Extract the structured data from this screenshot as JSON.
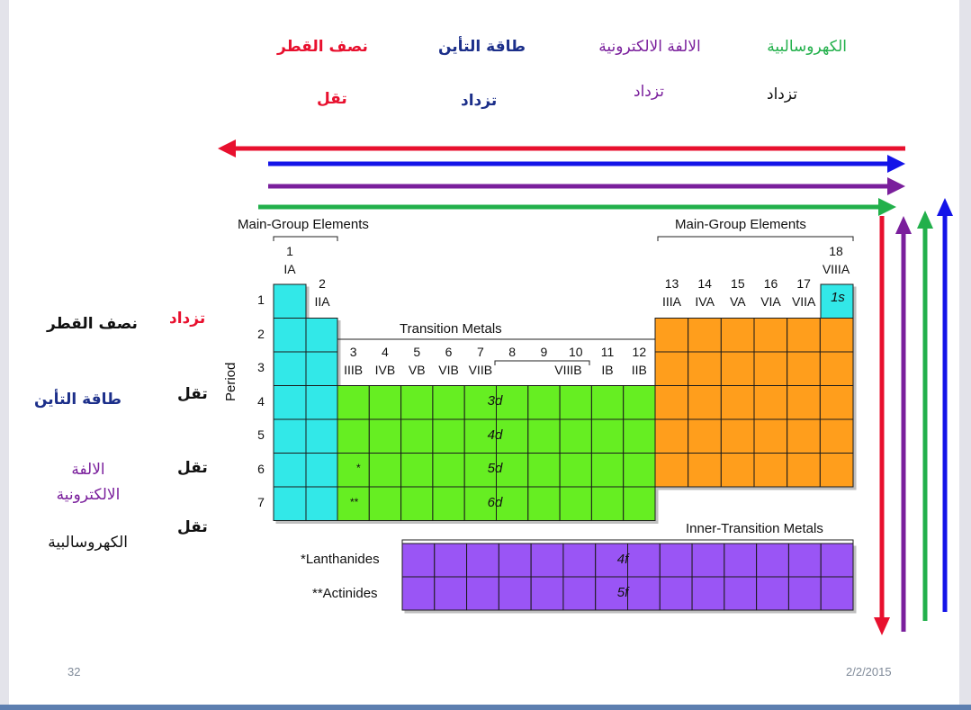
{
  "top_headers": {
    "radius": {
      "title": "نصف القطر",
      "trend": "تقل",
      "color": "#e8102e"
    },
    "ionization": {
      "title": "طاقة التأين",
      "trend": "تزداد",
      "color": "#1c2f8a"
    },
    "affinity": {
      "title": "الالفة الالكترونية",
      "trend": "تزداد",
      "color": "#7a1f9c"
    },
    "electro": {
      "title": "الكهروسالبية",
      "trend": "تزداد",
      "color": "#22b04b",
      "trend_color": "#111111"
    }
  },
  "left_headers": {
    "radius": {
      "title": "نصف القطر",
      "trend": "تزداد",
      "color": "#111111",
      "trend_color": "#e8102e"
    },
    "ionization": {
      "title": "طاقة التأين",
      "trend": "تقل",
      "color": "#1c2f8a"
    },
    "affinity": {
      "title": "الالفة الالكترونية",
      "trend": "تقل",
      "color": "#7a1f9c"
    },
    "electro": {
      "title": "الكهروسالبية",
      "trend": "تقل",
      "color": "#111111"
    }
  },
  "table": {
    "main_group_left": "Main-Group Elements",
    "main_group_right": "Main-Group Elements",
    "transition_metals": "Transition Metals",
    "inner_transition": "Inner-Transition Metals",
    "period_label": "Period",
    "periods": [
      "1",
      "2",
      "3",
      "4",
      "5",
      "6",
      "7"
    ],
    "group1": {
      "num": "1",
      "roman": "IA"
    },
    "group2": {
      "num": "2",
      "roman": "IIA"
    },
    "group18": {
      "num": "18",
      "roman": "VIIIA"
    },
    "main_right_groups": [
      {
        "num": "13",
        "roman": "IIIA"
      },
      {
        "num": "14",
        "roman": "IVA"
      },
      {
        "num": "15",
        "roman": "VA"
      },
      {
        "num": "16",
        "roman": "VIA"
      },
      {
        "num": "17",
        "roman": "VIIA"
      }
    ],
    "transition_groups": [
      {
        "num": "3",
        "roman": "IIIB"
      },
      {
        "num": "4",
        "roman": "IVB"
      },
      {
        "num": "5",
        "roman": "VB"
      },
      {
        "num": "6",
        "roman": "VIB"
      },
      {
        "num": "7",
        "roman": "VIIB"
      },
      {
        "num": "8",
        "roman": ""
      },
      {
        "num": "9",
        "roman": "VIIIB"
      },
      {
        "num": "10",
        "roman": ""
      },
      {
        "num": "11",
        "roman": "IB"
      },
      {
        "num": "12",
        "roman": "IIB"
      }
    ],
    "orbital_1s": "1s",
    "orbitals_d": [
      "3d",
      "4d",
      "5d",
      "6d"
    ],
    "orbitals_f": [
      "4f",
      "5f"
    ],
    "lanthanides": "*Lanthanides",
    "actinides": "**Actinides",
    "star_single": "*",
    "star_double": "**",
    "colors": {
      "s_block": "#33e8e8",
      "d_block": "#66ee22",
      "p_block": "#ff9e1f",
      "f_block": "#9a55f5"
    }
  },
  "footer": {
    "page_number": "32",
    "date": "2/2/2015"
  }
}
